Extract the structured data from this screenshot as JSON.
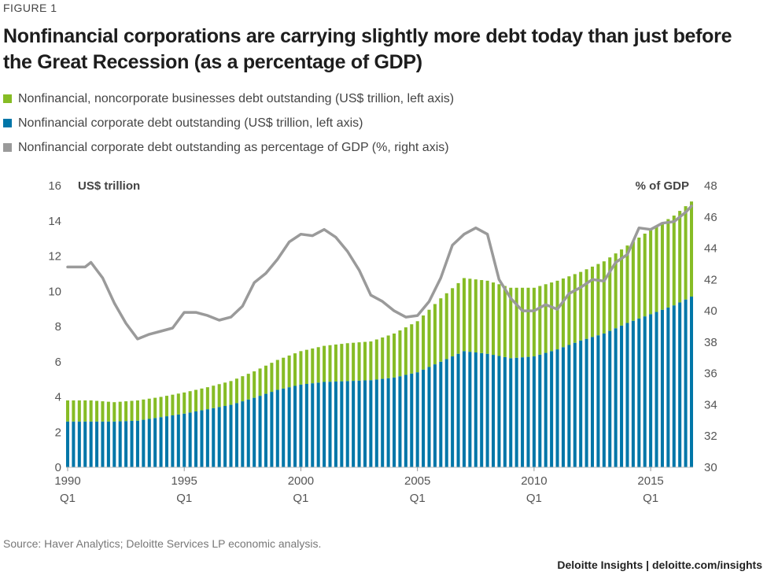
{
  "figure_label": "FIGURE 1",
  "title": "Nonfinancial corporations are carrying slightly more debt today than just before the Great Recession (as a percentage of GDP)",
  "legend": [
    {
      "label": "Nonfinancial, noncorporate businesses debt outstanding (US$ trillion, left axis)",
      "color": "#86bc25"
    },
    {
      "label": "Nonfinancial corporate debt outstanding (US$ trillion, left axis)",
      "color": "#0076a8"
    },
    {
      "label": "Nonfinancial corporate debt outstanding as percentage of GDP (%, right axis)",
      "color": "#9a9a9a"
    }
  ],
  "source": "Source: Haver Analytics; Deloitte Services LP economic analysis.",
  "brand": "Deloitte Insights | deloitte.com/insights",
  "chart_data": {
    "type": "bar",
    "stacked": true,
    "left_axis_label": "US$ trillion",
    "right_axis_label": "% of GDP",
    "ylim_left": [
      0,
      16
    ],
    "ylim_right": [
      30,
      48
    ],
    "left_ticks": [
      "0",
      "2",
      "4",
      "6",
      "8",
      "10",
      "12",
      "14",
      "16"
    ],
    "right_ticks": [
      "30",
      "32",
      "34",
      "36",
      "38",
      "40",
      "42",
      "44",
      "46",
      "48"
    ],
    "x_ticks": [
      {
        "year": "1990",
        "q": "Q1"
      },
      {
        "year": "1995",
        "q": "Q1"
      },
      {
        "year": "2000",
        "q": "Q1"
      },
      {
        "year": "2005",
        "q": "Q1"
      },
      {
        "year": "2010",
        "q": "Q1"
      },
      {
        "year": "2015",
        "q": "Q1"
      }
    ],
    "x_range": [
      1990.0,
      2016.75
    ],
    "corporate_anchors": [
      [
        1990.0,
        2.6
      ],
      [
        1991.0,
        2.6
      ],
      [
        1992.0,
        2.6
      ],
      [
        1993.0,
        2.65
      ],
      [
        1994.0,
        2.85
      ],
      [
        1995.0,
        3.05
      ],
      [
        1996.0,
        3.3
      ],
      [
        1997.0,
        3.55
      ],
      [
        1998.0,
        3.95
      ],
      [
        1999.0,
        4.4
      ],
      [
        2000.0,
        4.7
      ],
      [
        2001.0,
        4.85
      ],
      [
        2002.0,
        4.9
      ],
      [
        2003.0,
        4.95
      ],
      [
        2004.0,
        5.1
      ],
      [
        2005.0,
        5.4
      ],
      [
        2006.0,
        6.0
      ],
      [
        2007.0,
        6.6
      ],
      [
        2008.0,
        6.45
      ],
      [
        2009.0,
        6.2
      ],
      [
        2010.0,
        6.3
      ],
      [
        2011.0,
        6.7
      ],
      [
        2012.0,
        7.2
      ],
      [
        2013.0,
        7.6
      ],
      [
        2014.0,
        8.2
      ],
      [
        2015.0,
        8.7
      ],
      [
        2016.0,
        9.2
      ],
      [
        2016.75,
        9.7
      ]
    ],
    "total_anchors": [
      [
        1990.0,
        3.8
      ],
      [
        1991.0,
        3.8
      ],
      [
        1992.0,
        3.7
      ],
      [
        1993.0,
        3.8
      ],
      [
        1994.0,
        4.0
      ],
      [
        1995.0,
        4.25
      ],
      [
        1996.0,
        4.55
      ],
      [
        1997.0,
        4.9
      ],
      [
        1998.0,
        5.45
      ],
      [
        1999.0,
        6.1
      ],
      [
        2000.0,
        6.6
      ],
      [
        2001.0,
        6.9
      ],
      [
        2002.0,
        7.05
      ],
      [
        2003.0,
        7.15
      ],
      [
        2004.0,
        7.6
      ],
      [
        2005.0,
        8.3
      ],
      [
        2006.0,
        9.6
      ],
      [
        2007.0,
        10.75
      ],
      [
        2008.0,
        10.6
      ],
      [
        2009.0,
        10.2
      ],
      [
        2010.0,
        10.2
      ],
      [
        2011.0,
        10.6
      ],
      [
        2012.0,
        11.1
      ],
      [
        2013.0,
        11.7
      ],
      [
        2014.0,
        12.6
      ],
      [
        2015.0,
        13.5
      ],
      [
        2016.0,
        14.3
      ],
      [
        2016.75,
        15.1
      ]
    ],
    "pct_gdp": [
      [
        1990.0,
        42.8
      ],
      [
        1990.75,
        42.8
      ],
      [
        1991.0,
        43.1
      ],
      [
        1991.5,
        42.1
      ],
      [
        1992.0,
        40.5
      ],
      [
        1992.5,
        39.2
      ],
      [
        1993.0,
        38.2
      ],
      [
        1993.5,
        38.5
      ],
      [
        1994.0,
        38.7
      ],
      [
        1994.5,
        38.9
      ],
      [
        1995.0,
        39.9
      ],
      [
        1995.5,
        39.9
      ],
      [
        1996.0,
        39.7
      ],
      [
        1996.5,
        39.4
      ],
      [
        1997.0,
        39.6
      ],
      [
        1997.5,
        40.3
      ],
      [
        1998.0,
        41.8
      ],
      [
        1998.5,
        42.4
      ],
      [
        1999.0,
        43.3
      ],
      [
        1999.5,
        44.4
      ],
      [
        2000.0,
        44.9
      ],
      [
        2000.5,
        44.8
      ],
      [
        2001.0,
        45.2
      ],
      [
        2001.5,
        44.7
      ],
      [
        2002.0,
        43.8
      ],
      [
        2002.5,
        42.6
      ],
      [
        2003.0,
        41.0
      ],
      [
        2003.5,
        40.6
      ],
      [
        2004.0,
        40.0
      ],
      [
        2004.5,
        39.6
      ],
      [
        2005.0,
        39.7
      ],
      [
        2005.5,
        40.6
      ],
      [
        2006.0,
        42.1
      ],
      [
        2006.5,
        44.2
      ],
      [
        2007.0,
        44.9
      ],
      [
        2007.5,
        45.3
      ],
      [
        2008.0,
        44.9
      ],
      [
        2008.5,
        42.0
      ],
      [
        2009.0,
        40.8
      ],
      [
        2009.5,
        40.0
      ],
      [
        2010.0,
        40.0
      ],
      [
        2010.5,
        40.4
      ],
      [
        2011.0,
        40.1
      ],
      [
        2011.5,
        41.1
      ],
      [
        2012.0,
        41.5
      ],
      [
        2012.5,
        42.0
      ],
      [
        2013.0,
        41.9
      ],
      [
        2013.5,
        43.1
      ],
      [
        2014.0,
        43.6
      ],
      [
        2014.5,
        45.3
      ],
      [
        2015.0,
        45.2
      ],
      [
        2015.5,
        45.6
      ],
      [
        2016.0,
        45.7
      ],
      [
        2016.5,
        46.3
      ],
      [
        2016.75,
        46.7
      ]
    ]
  }
}
